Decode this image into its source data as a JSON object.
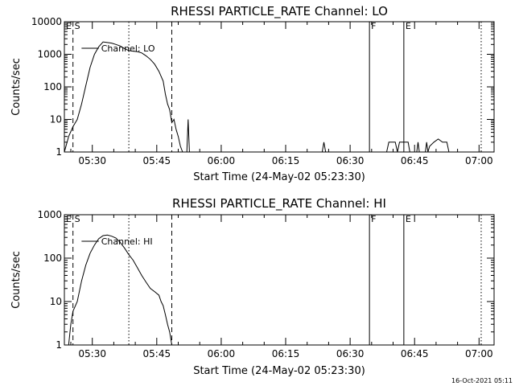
{
  "footer": {
    "timestamp": "16-Oct-2021 05:11"
  },
  "chart_data": [
    {
      "type": "line",
      "title": "RHESSI PARTICLE_RATE Channel: LO",
      "xlabel": "Start Time (24-May-02 05:23:30)",
      "ylabel": "Counts/sec",
      "yscale": "log",
      "xlim_minutes": [
        0,
        100
      ],
      "ylim": [
        1,
        10000
      ],
      "x_ticks": [
        "05:30",
        "05:45",
        "06:00",
        "06:15",
        "06:30",
        "06:45",
        "07:00"
      ],
      "y_ticks": [
        "1",
        "10",
        "100",
        "1000",
        "10000"
      ],
      "legend": {
        "placement": "top-left",
        "label": "Channel: LO"
      },
      "markers": [
        {
          "label": "E",
          "style": "solid",
          "minute": 0
        },
        {
          "label": "S",
          "style": "dashed",
          "minute": 2
        },
        {
          "label": "",
          "style": "dotted",
          "minute": 15
        },
        {
          "label": "",
          "style": "dashed",
          "minute": 25
        },
        {
          "label": "F",
          "style": "solid",
          "minute": 71
        },
        {
          "label": "E",
          "style": "solid",
          "minute": 79
        },
        {
          "label": "",
          "style": "dotted",
          "minute": 97
        }
      ],
      "series": [
        {
          "name": "Channel: LO",
          "segments": [
            [
              [
                0,
                1
              ],
              [
                1,
                3
              ],
              [
                2,
                6
              ],
              [
                3,
                10
              ],
              [
                4,
                30
              ],
              [
                5,
                110
              ],
              [
                6,
                400
              ],
              [
                7,
                1000
              ],
              [
                8,
                1700
              ],
              [
                9,
                2400
              ],
              [
                10,
                2300
              ],
              [
                11,
                2200
              ],
              [
                12,
                2000
              ],
              [
                13,
                1800
              ],
              [
                14,
                1500
              ],
              [
                15,
                1300
              ],
              [
                16,
                1250
              ],
              [
                17,
                1200
              ],
              [
                18,
                1100
              ],
              [
                19,
                900
              ],
              [
                20,
                700
              ],
              [
                21,
                500
              ],
              [
                22,
                300
              ],
              [
                23,
                150
              ],
              [
                23.5,
                60
              ],
              [
                24,
                30
              ],
              [
                24.5,
                20
              ],
              [
                25,
                8
              ],
              [
                25.5,
                10
              ],
              [
                26,
                5
              ],
              [
                26.5,
                3
              ],
              [
                27,
                1.5
              ],
              [
                27.5,
                1
              ]
            ],
            [
              [
                28.5,
                1
              ],
              [
                28.8,
                10
              ],
              [
                29.1,
                1
              ]
            ],
            [
              [
                60,
                1
              ],
              [
                60.4,
                2
              ],
              [
                60.8,
                1
              ]
            ],
            [
              [
                75,
                1
              ],
              [
                75.5,
                2
              ],
              [
                77,
                2
              ],
              [
                77.5,
                1
              ],
              [
                78,
                2
              ],
              [
                80,
                2
              ],
              [
                80.4,
                1
              ]
            ],
            [
              [
                82,
                1
              ],
              [
                82.3,
                2
              ],
              [
                82.6,
                1
              ]
            ],
            [
              [
                84,
                1
              ],
              [
                84.3,
                2
              ],
              [
                84.6,
                1
              ],
              [
                85,
                1.5
              ],
              [
                86,
                2
              ],
              [
                87,
                2.5
              ],
              [
                88,
                2
              ],
              [
                89,
                2
              ],
              [
                89.5,
                1
              ]
            ]
          ]
        }
      ]
    },
    {
      "type": "line",
      "title": "RHESSI PARTICLE_RATE Channel: HI",
      "xlabel": "Start Time (24-May-02 05:23:30)",
      "ylabel": "Counts/sec",
      "yscale": "log",
      "xlim_minutes": [
        0,
        100
      ],
      "ylim": [
        1,
        1000
      ],
      "x_ticks": [
        "05:30",
        "05:45",
        "06:00",
        "06:15",
        "06:30",
        "06:45",
        "07:00"
      ],
      "y_ticks": [
        "1",
        "10",
        "100",
        "1000"
      ],
      "legend": {
        "placement": "top-left",
        "label": "Channel: HI"
      },
      "markers": [
        {
          "label": "E",
          "style": "solid",
          "minute": 0
        },
        {
          "label": "S",
          "style": "dashed",
          "minute": 2
        },
        {
          "label": "",
          "style": "dotted",
          "minute": 15
        },
        {
          "label": "",
          "style": "dashed",
          "minute": 25
        },
        {
          "label": "F",
          "style": "solid",
          "minute": 71
        },
        {
          "label": "E",
          "style": "solid",
          "minute": 79
        },
        {
          "label": "",
          "style": "dotted",
          "minute": 97
        }
      ],
      "series": [
        {
          "name": "Channel: HI",
          "segments": [
            [
              [
                1,
                1
              ],
              [
                1.5,
                3
              ],
              [
                2,
                6
              ],
              [
                3,
                10
              ],
              [
                4,
                30
              ],
              [
                5,
                70
              ],
              [
                6,
                130
              ],
              [
                7,
                200
              ],
              [
                8,
                280
              ],
              [
                9,
                330
              ],
              [
                10,
                340
              ],
              [
                11,
                320
              ],
              [
                12,
                290
              ],
              [
                13,
                230
              ],
              [
                14,
                170
              ],
              [
                15,
                120
              ],
              [
                16,
                90
              ],
              [
                17,
                60
              ],
              [
                18,
                40
              ],
              [
                19,
                28
              ],
              [
                20,
                20
              ],
              [
                21,
                17
              ],
              [
                22,
                14
              ],
              [
                22.5,
                10
              ],
              [
                23,
                8
              ],
              [
                23.5,
                5
              ],
              [
                24,
                3
              ],
              [
                24.5,
                2
              ],
              [
                25,
                1
              ]
            ]
          ]
        }
      ]
    }
  ]
}
